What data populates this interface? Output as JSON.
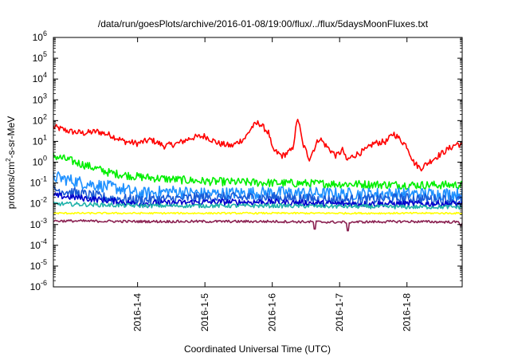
{
  "chart_data": {
    "type": "line",
    "title": "/data/run/goesPlots/archive/2016-01-08/19:00/flux/../flux/5daysMoonFluxes.txt",
    "xlabel": "Coordinated Universal Time (UTC)",
    "ylabel_base": "protons/cm",
    "ylabel_sup": "2",
    "ylabel_tail": "-s-sr-MeV",
    "y_scale": "log",
    "ylim": [
      1e-06,
      1000000.0
    ],
    "y_ticks": [
      {
        "value": 1e-06,
        "base": "10",
        "exp": "-6"
      },
      {
        "value": 1e-05,
        "base": "10",
        "exp": "-5"
      },
      {
        "value": 0.0001,
        "base": "10",
        "exp": "-4"
      },
      {
        "value": 0.001,
        "base": "10",
        "exp": "-3"
      },
      {
        "value": 0.01,
        "base": "10",
        "exp": "-2"
      },
      {
        "value": 0.1,
        "base": "10",
        "exp": "-1"
      },
      {
        "value": 1,
        "base": "10",
        "exp": "0"
      },
      {
        "value": 10,
        "base": "10",
        "exp": "1"
      },
      {
        "value": 100,
        "base": "10",
        "exp": "2"
      },
      {
        "value": 1000,
        "base": "10",
        "exp": "3"
      },
      {
        "value": 10000,
        "base": "10",
        "exp": "4"
      },
      {
        "value": 100000,
        "base": "10",
        "exp": "5"
      },
      {
        "value": 1000000,
        "base": "10",
        "exp": "6"
      }
    ],
    "xlim": [
      2016.0103,
      2016.0159
    ],
    "x_domain_days": [
      2.75,
      8.82
    ],
    "x_ticks": [
      {
        "day": 4,
        "label": "2016-1-4"
      },
      {
        "day": 5,
        "label": "2016-1-5"
      },
      {
        "day": 6,
        "label": "2016-1-6"
      },
      {
        "day": 7,
        "label": "2016-1-7"
      },
      {
        "day": 8,
        "label": "2016-1-8"
      }
    ],
    "grid": false,
    "legend": "none",
    "series": [
      {
        "color": "#ff0000",
        "noise": 0.15,
        "points": [
          [
            2.75,
            50
          ],
          [
            3.0,
            30
          ],
          [
            3.2,
            25
          ],
          [
            3.4,
            30
          ],
          [
            3.6,
            20
          ],
          [
            3.8,
            10
          ],
          [
            4.0,
            8
          ],
          [
            4.2,
            12
          ],
          [
            4.4,
            6
          ],
          [
            4.6,
            8
          ],
          [
            4.8,
            15
          ],
          [
            5.0,
            18
          ],
          [
            5.2,
            8
          ],
          [
            5.4,
            6
          ],
          [
            5.6,
            15
          ],
          [
            5.7,
            50
          ],
          [
            5.8,
            80
          ],
          [
            5.95,
            25
          ],
          [
            6.0,
            4
          ],
          [
            6.15,
            2
          ],
          [
            6.3,
            4
          ],
          [
            6.38,
            150
          ],
          [
            6.45,
            8
          ],
          [
            6.55,
            1.5
          ],
          [
            6.7,
            15
          ],
          [
            6.8,
            6
          ],
          [
            6.95,
            2
          ],
          [
            7.05,
            4
          ],
          [
            7.1,
            1.2
          ],
          [
            7.2,
            2
          ],
          [
            7.4,
            4
          ],
          [
            7.5,
            8
          ],
          [
            7.7,
            10
          ],
          [
            7.8,
            25
          ],
          [
            7.9,
            12
          ],
          [
            8.0,
            6
          ],
          [
            8.1,
            1
          ],
          [
            8.2,
            0.5
          ],
          [
            8.4,
            1.5
          ],
          [
            8.6,
            4
          ],
          [
            8.75,
            8
          ],
          [
            8.82,
            6
          ]
        ]
      },
      {
        "color": "#00ee00",
        "noise": 0.2,
        "points": [
          [
            2.75,
            2
          ],
          [
            3.0,
            1.2
          ],
          [
            3.3,
            0.6
          ],
          [
            3.6,
            0.3
          ],
          [
            4.0,
            0.2
          ],
          [
            4.5,
            0.15
          ],
          [
            5.0,
            0.12
          ],
          [
            6.0,
            0.1
          ],
          [
            7.0,
            0.09
          ],
          [
            8.0,
            0.08
          ],
          [
            8.82,
            0.08
          ]
        ]
      },
      {
        "color": "#1e90ff",
        "noise": 0.3,
        "points": [
          [
            2.75,
            0.2
          ],
          [
            3.2,
            0.1
          ],
          [
            3.8,
            0.05
          ],
          [
            4.0,
            0.03
          ],
          [
            4.5,
            0.04
          ],
          [
            5.0,
            0.03
          ],
          [
            6.0,
            0.035
          ],
          [
            7.0,
            0.03
          ],
          [
            8.0,
            0.03
          ],
          [
            8.82,
            0.03
          ]
        ]
      },
      {
        "color": "#1a5bd6",
        "noise": 0.25,
        "points": [
          [
            2.75,
            0.05
          ],
          [
            3.5,
            0.02
          ],
          [
            4.0,
            0.015
          ],
          [
            5.0,
            0.02
          ],
          [
            6.0,
            0.02
          ],
          [
            7.0,
            0.015
          ],
          [
            8.0,
            0.018
          ],
          [
            8.82,
            0.015
          ]
        ]
      },
      {
        "color": "#0000cc",
        "noise": 0.15,
        "points": [
          [
            2.75,
            0.025
          ],
          [
            3.5,
            0.015
          ],
          [
            4.0,
            0.01
          ],
          [
            5.0,
            0.012
          ],
          [
            6.0,
            0.012
          ],
          [
            7.0,
            0.01
          ],
          [
            8.0,
            0.01
          ],
          [
            8.82,
            0.01
          ]
        ]
      },
      {
        "color": "#20b2aa",
        "noise": 0.1,
        "points": [
          [
            2.75,
            0.01
          ],
          [
            4.0,
            0.008
          ],
          [
            6.0,
            0.008
          ],
          [
            8.0,
            0.007
          ],
          [
            8.82,
            0.007
          ]
        ]
      },
      {
        "color": "#ffff00",
        "noise": 0.04,
        "points": [
          [
            2.75,
            0.0035
          ],
          [
            5.0,
            0.0035
          ],
          [
            7.0,
            0.0035
          ],
          [
            8.82,
            0.0035
          ]
        ]
      },
      {
        "color": "#8b2252",
        "noise": 0.06,
        "points": [
          [
            2.75,
            0.0015
          ],
          [
            4.0,
            0.0014
          ],
          [
            5.0,
            0.0014
          ],
          [
            6.0,
            0.0014
          ],
          [
            7.0,
            0.0013
          ],
          [
            8.0,
            0.0014
          ],
          [
            8.82,
            0.0013
          ]
        ],
        "dips": [
          [
            6.63,
            0.0006
          ],
          [
            7.12,
            0.0005
          ],
          [
            8.8,
            0.0009
          ]
        ]
      }
    ]
  }
}
